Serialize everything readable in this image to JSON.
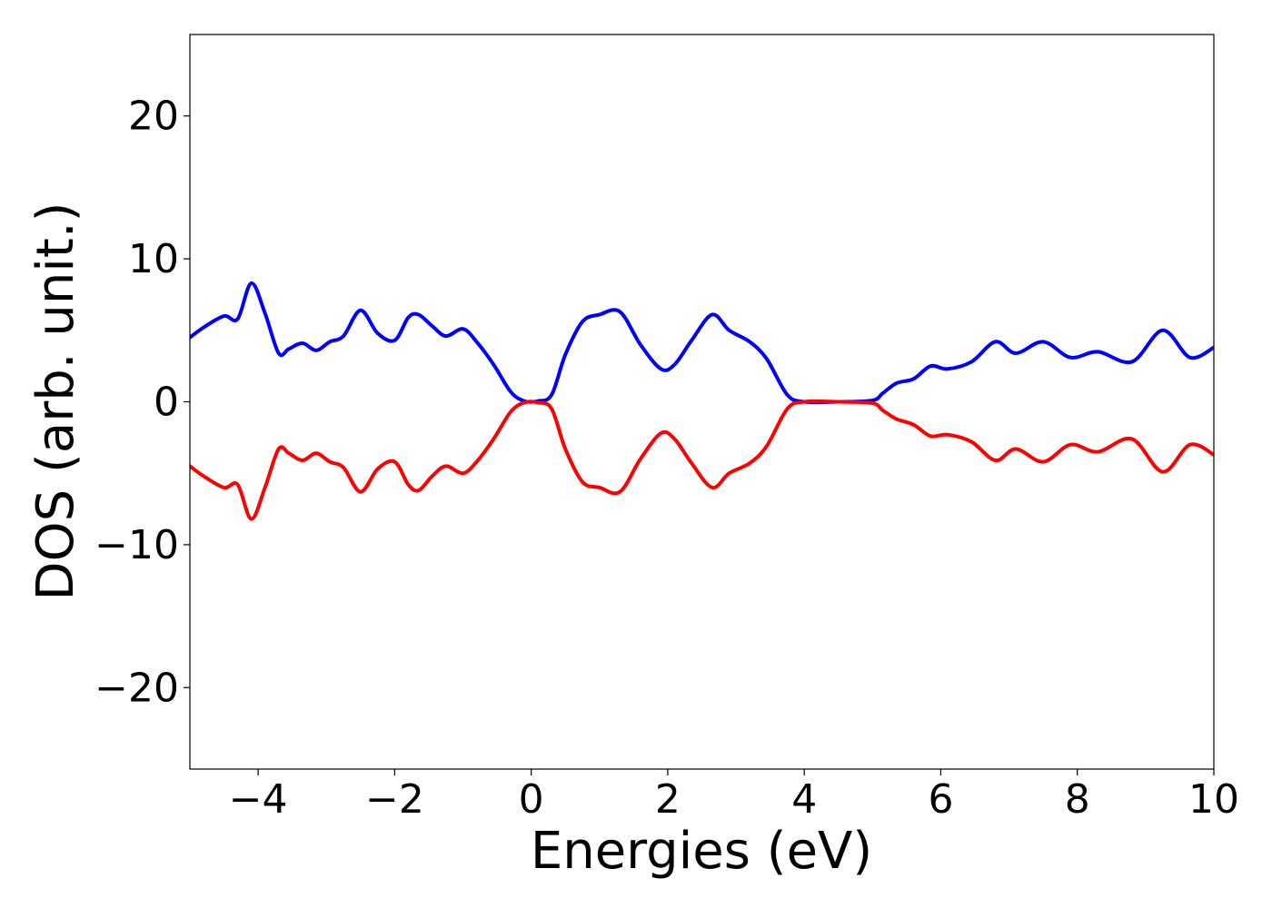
{
  "chart_data": {
    "type": "line",
    "title": "",
    "xlabel": "Energies (eV)",
    "ylabel": "DOS (arb. unit.)",
    "xlim": [
      -5,
      10
    ],
    "ylim": [
      -25.7,
      25.7
    ],
    "xticks": [
      -4,
      -2,
      0,
      2,
      4,
      6,
      8,
      10
    ],
    "xtick_labels": [
      "−4",
      "−2",
      "0",
      "2",
      "4",
      "6",
      "8",
      "10"
    ],
    "yticks": [
      -20,
      -10,
      0,
      10,
      20
    ],
    "ytick_labels": [
      "−20",
      "−10",
      "0",
      "10",
      "20"
    ],
    "grid": false,
    "legend": false,
    "colors": {
      "spin_up": "#0000ff",
      "spin_down": "#ff0000"
    },
    "x": [
      -5.0,
      -4.8,
      -4.5,
      -4.3,
      -4.1,
      -3.9,
      -3.7,
      -3.55,
      -3.35,
      -3.15,
      -2.95,
      -2.75,
      -2.5,
      -2.25,
      -2.0,
      -1.8,
      -1.65,
      -1.45,
      -1.25,
      -1.0,
      -0.8,
      -0.55,
      -0.3,
      -0.1,
      0.1,
      0.3,
      0.5,
      0.75,
      1.0,
      1.3,
      1.6,
      1.9,
      2.1,
      2.35,
      2.65,
      2.9,
      3.2,
      3.45,
      3.75,
      4.0,
      4.5,
      5.0,
      5.15,
      5.35,
      5.6,
      5.85,
      6.1,
      6.45,
      6.8,
      7.1,
      7.5,
      7.9,
      8.3,
      8.8,
      9.25,
      9.65,
      10.0
    ],
    "series": [
      {
        "values": [
          4.5,
          5.2,
          6.0,
          5.8,
          8.3,
          6.2,
          3.4,
          3.7,
          4.1,
          3.6,
          4.2,
          4.6,
          6.4,
          4.8,
          4.3,
          5.9,
          6.1,
          5.3,
          4.6,
          5.1,
          4.2,
          2.6,
          0.7,
          0.05,
          0.05,
          0.5,
          3.3,
          5.6,
          6.1,
          6.3,
          4.0,
          2.3,
          2.6,
          4.3,
          6.1,
          5.0,
          4.2,
          3.0,
          0.5,
          0.0,
          0.0,
          0.1,
          0.6,
          1.3,
          1.6,
          2.5,
          2.3,
          2.8,
          4.2,
          3.4,
          4.2,
          3.1,
          3.5,
          2.8,
          5.0,
          3.1,
          3.8
        ]
      },
      {
        "values": [
          -4.5,
          -5.2,
          -6.0,
          -5.8,
          -8.2,
          -6.0,
          -3.3,
          -3.6,
          -4.1,
          -3.6,
          -4.2,
          -4.6,
          -6.3,
          -4.7,
          -4.2,
          -5.8,
          -6.2,
          -5.2,
          -4.5,
          -5.0,
          -4.2,
          -2.6,
          -0.7,
          -0.05,
          -0.05,
          -0.5,
          -3.3,
          -5.6,
          -6.0,
          -6.3,
          -4.0,
          -2.2,
          -2.6,
          -4.3,
          -6.0,
          -5.0,
          -4.3,
          -3.1,
          -0.5,
          0.0,
          0.0,
          -0.1,
          -0.6,
          -1.2,
          -1.6,
          -2.4,
          -2.3,
          -2.8,
          -4.1,
          -3.3,
          -4.2,
          -3.0,
          -3.5,
          -2.6,
          -4.9,
          -3.0,
          -3.7
        ]
      }
    ]
  }
}
